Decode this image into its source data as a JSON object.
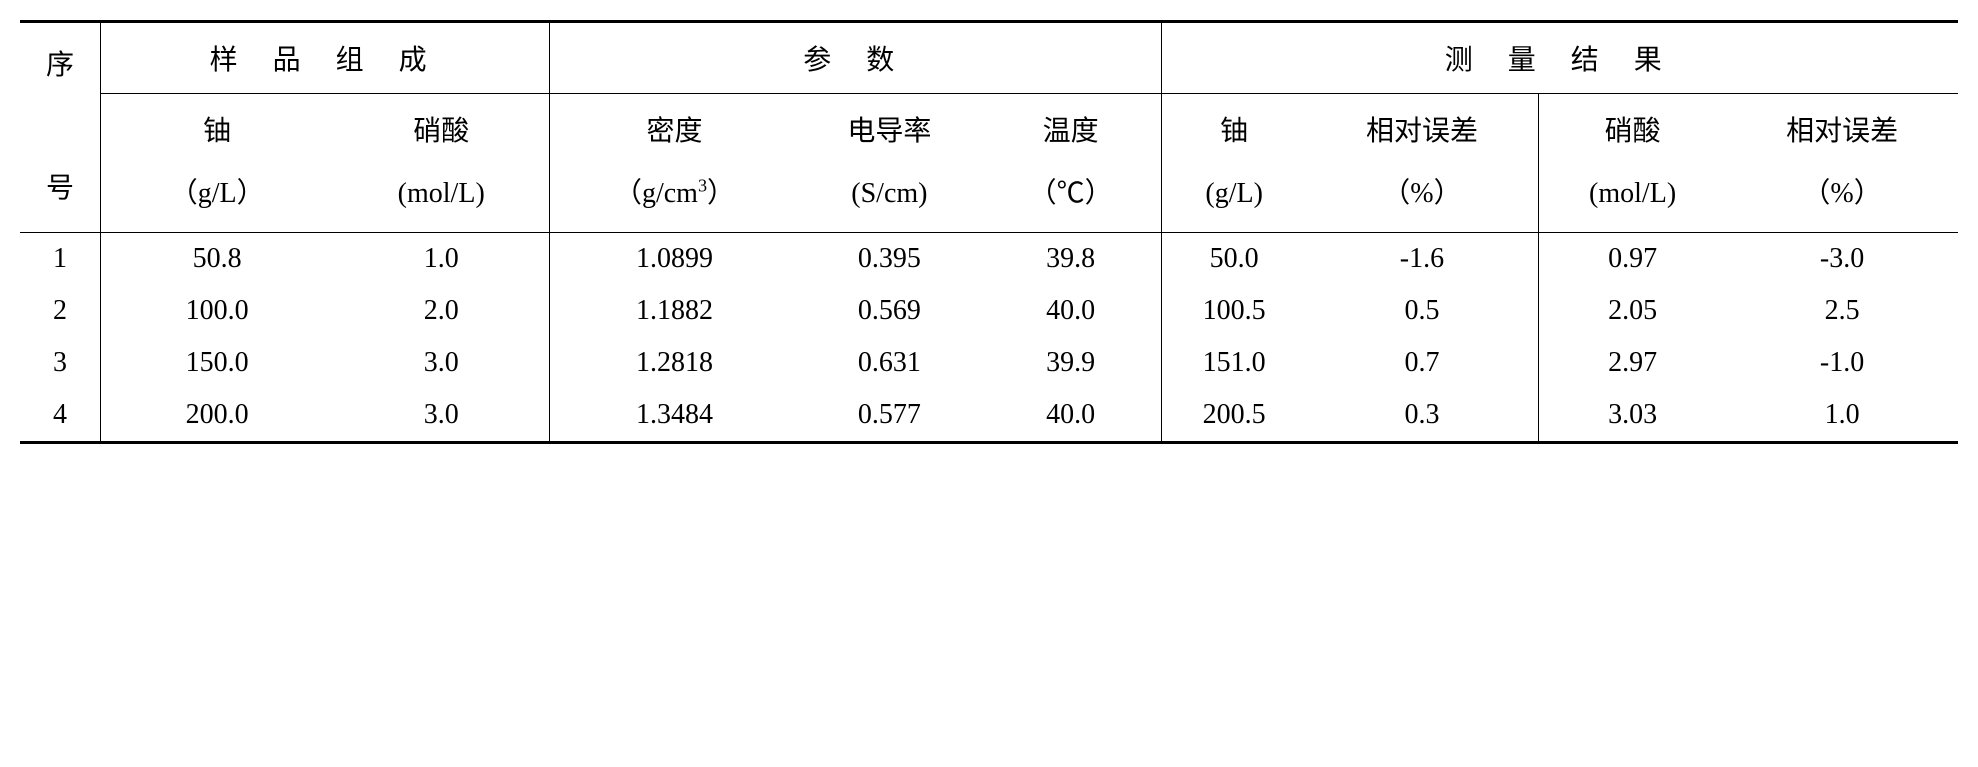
{
  "table": {
    "headers": {
      "seq": "序\n号",
      "group1": "样 品 组 成",
      "group2": "参  数",
      "group3": "测  量  结  果",
      "sub": {
        "u1": "铀",
        "u1_unit": "（g/L）",
        "hno3_1": "硝酸",
        "hno3_1_unit": "(mol/L)",
        "density": "密度",
        "density_unit": "（g/cm³）",
        "cond": "电导率",
        "cond_unit": "(S/cm)",
        "temp": "温度",
        "temp_unit": "（℃）",
        "u2": "铀",
        "u2_unit": "(g/L)",
        "err1": "相对误差",
        "err1_unit": "（%）",
        "hno3_2": "硝酸",
        "hno3_2_unit": "(mol/L)",
        "err2": "相对误差",
        "err2_unit": "（%）"
      }
    },
    "rows": [
      {
        "seq": "1",
        "u1": "50.8",
        "hno3_1": "1.0",
        "density": "1.0899",
        "cond": "0.395",
        "temp": "39.8",
        "u2": "50.0",
        "err1": "-1.6",
        "hno3_2": "0.97",
        "err2": "-3.0"
      },
      {
        "seq": "2",
        "u1": "100.0",
        "hno3_1": "2.0",
        "density": "1.1882",
        "cond": "0.569",
        "temp": "40.0",
        "u2": "100.5",
        "err1": "0.5",
        "hno3_2": "2.05",
        "err2": "2.5"
      },
      {
        "seq": "3",
        "u1": "150.0",
        "hno3_1": "3.0",
        "density": "1.2818",
        "cond": "0.631",
        "temp": "39.9",
        "u2": "151.0",
        "err1": "0.7",
        "hno3_2": "2.97",
        "err2": "-1.0"
      },
      {
        "seq": "4",
        "u1": "200.0",
        "hno3_1": "3.0",
        "density": "1.3484",
        "cond": "0.577",
        "temp": "40.0",
        "u2": "200.5",
        "err1": "0.3",
        "hno3_2": "3.03",
        "err2": "1.0"
      }
    ],
    "colors": {
      "border": "#000000",
      "background": "#ffffff",
      "text": "#000000"
    },
    "font_size": 28
  }
}
